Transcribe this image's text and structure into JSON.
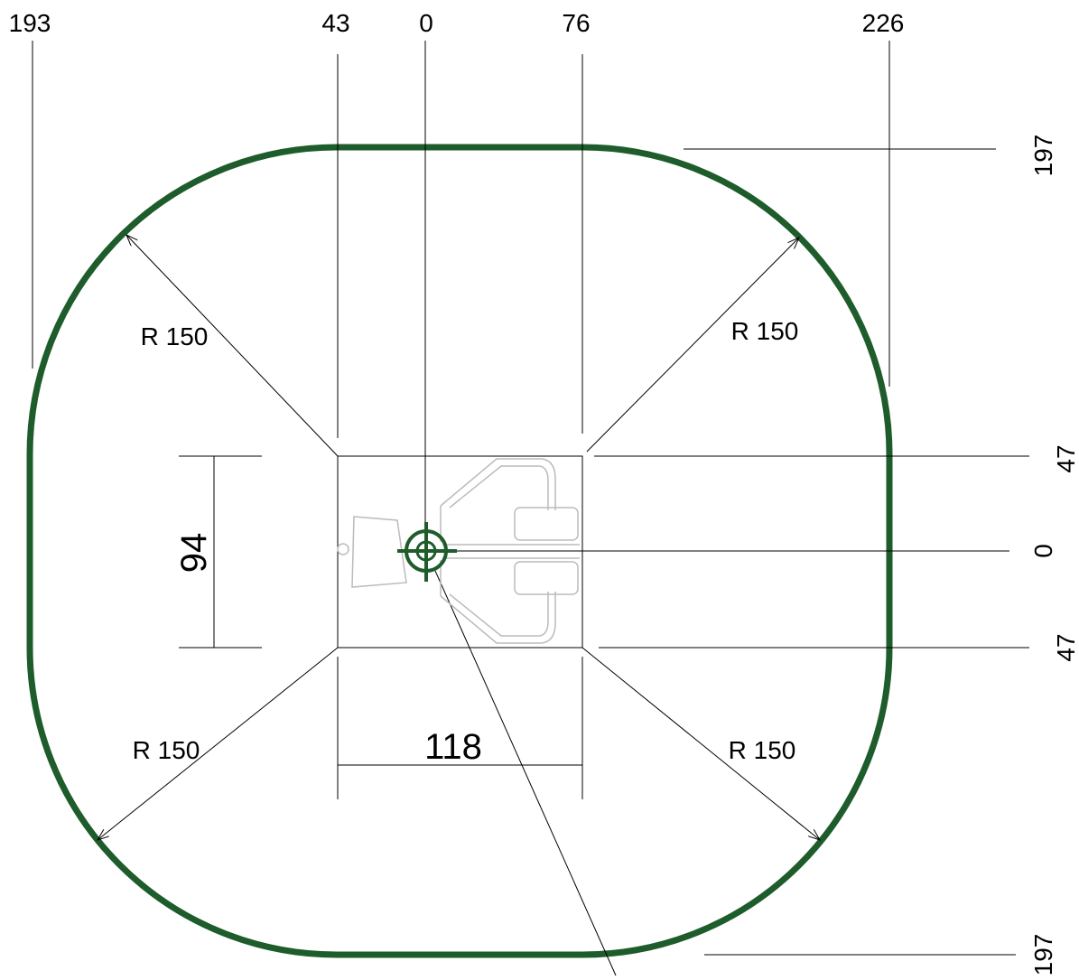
{
  "top_labels": [
    "193",
    "43",
    "0",
    "76",
    "226"
  ],
  "right_labels": [
    "197",
    "47",
    "0",
    "47",
    "197"
  ],
  "radius_labels": [
    "R 150",
    "R 150",
    "R 150",
    "R 150"
  ],
  "dimensions": {
    "height": "94",
    "width": "118"
  }
}
